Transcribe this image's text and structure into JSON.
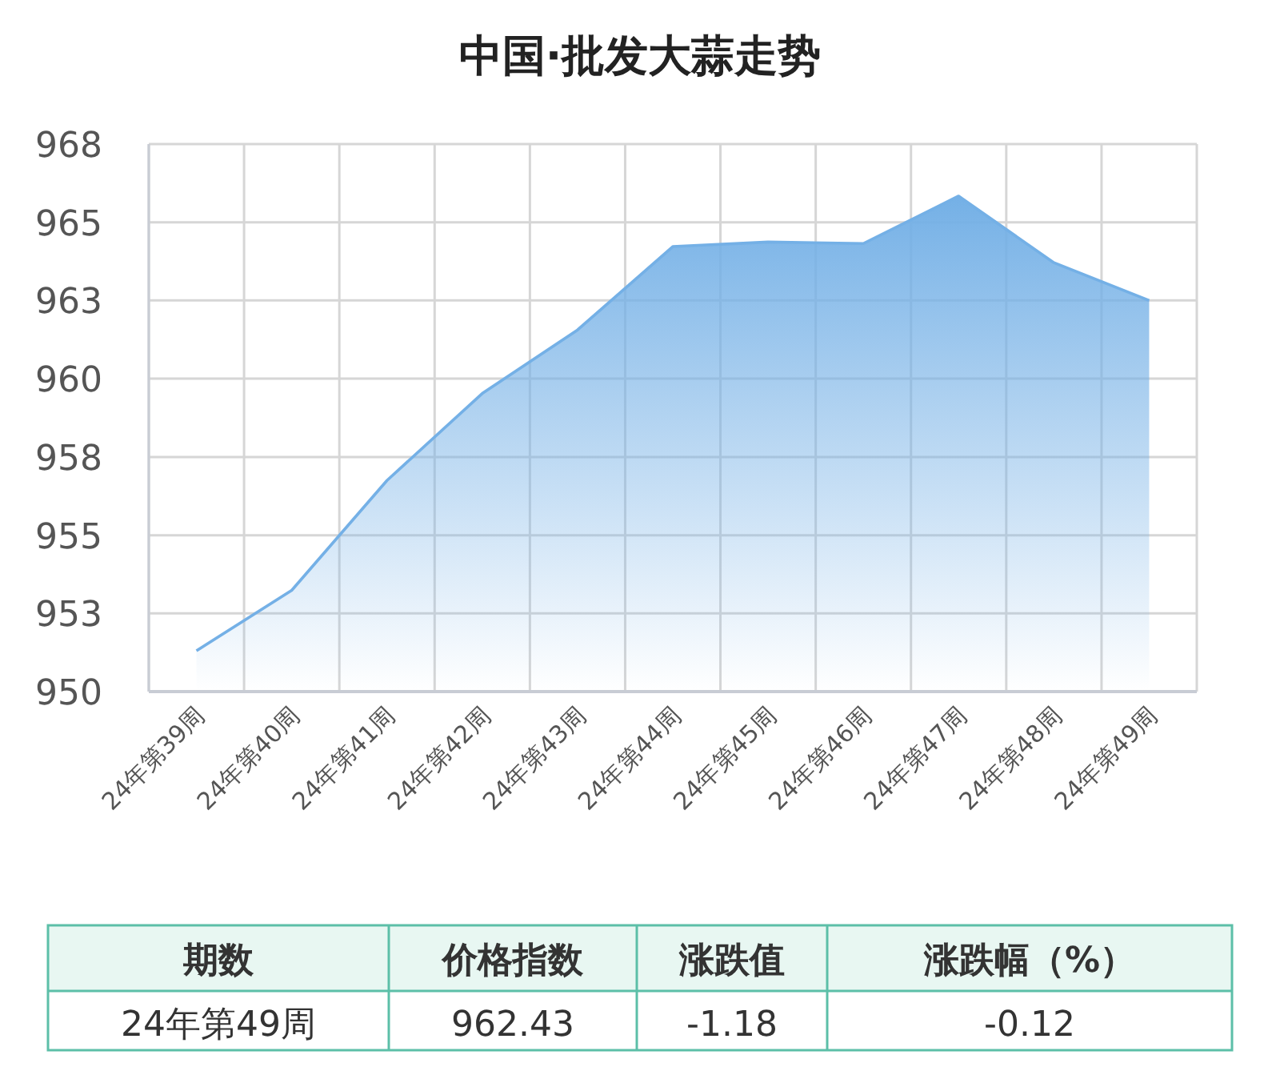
{
  "chart_data": {
    "type": "area",
    "title": "中国·批发大蒜走势",
    "categories": [
      "24年第39周",
      "24年第40周",
      "24年第41周",
      "24年第42周",
      "24年第43周",
      "24年第44周",
      "24年第45周",
      "24年第46周",
      "24年第47周",
      "24年第48周",
      "24年第49周"
    ],
    "values": [
      951.34,
      953.33,
      956.94,
      959.8,
      961.89,
      964.63,
      964.78,
      964.73,
      966.29,
      964.1,
      962.86
    ],
    "color": "#74b0e6",
    "ylim": [
      950,
      968
    ],
    "yticks": [
      950,
      {
        "value": 952.57,
        "label": "953"
      },
      {
        "value": 955.14,
        "label": "955"
      },
      {
        "value": 957.71,
        "label": "958"
      },
      {
        "value": 960.29,
        "label": "960"
      },
      {
        "value": 962.86,
        "label": "963"
      },
      {
        "value": 965.43,
        "label": "965"
      },
      968
    ],
    "grid": true,
    "annotations": [
      "期数",
      "价格指数",
      "涨跌值",
      "涨跌幅（%）",
      "24年第49周",
      "962.43",
      "-1.18",
      "-0.12"
    ]
  }
}
